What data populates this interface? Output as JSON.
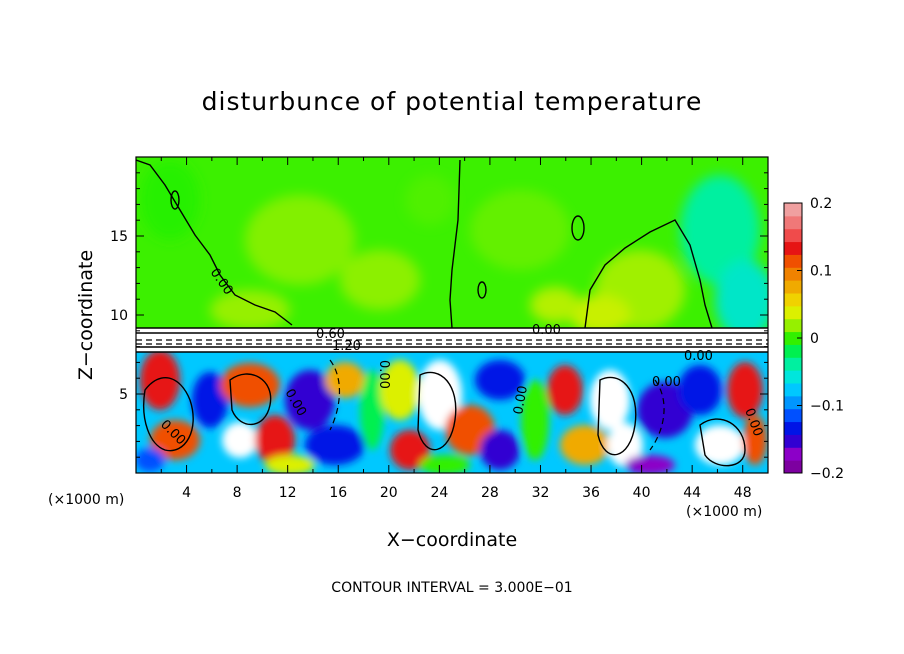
{
  "chart_data": {
    "type": "heatmap",
    "title": "disturbunce of potential temperature",
    "xlabel": "X−coordinate",
    "ylabel": "Z−coordinate",
    "x_unit": "(×1000 m)",
    "z_unit": "(×1000 m)",
    "xlim": [
      0,
      50
    ],
    "ylim": [
      0,
      20
    ],
    "x_ticks": [
      "4",
      "8",
      "12",
      "16",
      "20",
      "24",
      "28",
      "32",
      "36",
      "40",
      "44",
      "48"
    ],
    "y_ticks": [
      "5",
      "10",
      "15"
    ],
    "colorbar": {
      "range": [
        -0.2,
        0.2
      ],
      "tick_labels": [
        "0.2",
        "0.1",
        "0",
        "−0.1",
        "−0.2"
      ],
      "colors": [
        "#7d00a0",
        "#8c00c8",
        "#3200d2",
        "#0014e6",
        "#0050ff",
        "#0096ff",
        "#00c8ff",
        "#00e6dc",
        "#00f0a0",
        "#00f050",
        "#32f000",
        "#96f000",
        "#dcf000",
        "#f0d200",
        "#f0aa00",
        "#f08200",
        "#f05000",
        "#e61414",
        "#f04b4b",
        "#f07878",
        "#f0a0a0"
      ]
    },
    "contour_interval_note": "CONTOUR INTERVAL = 3.000E−01",
    "contour_labels": [
      "0.60",
      "1.20",
      "0.00",
      "0.00",
      "0.00",
      "0.00",
      "0.00",
      "0.00",
      "0.00",
      "0.00",
      "0.00"
    ],
    "inversion_layer_z": [
      7.6,
      9.0
    ]
  }
}
